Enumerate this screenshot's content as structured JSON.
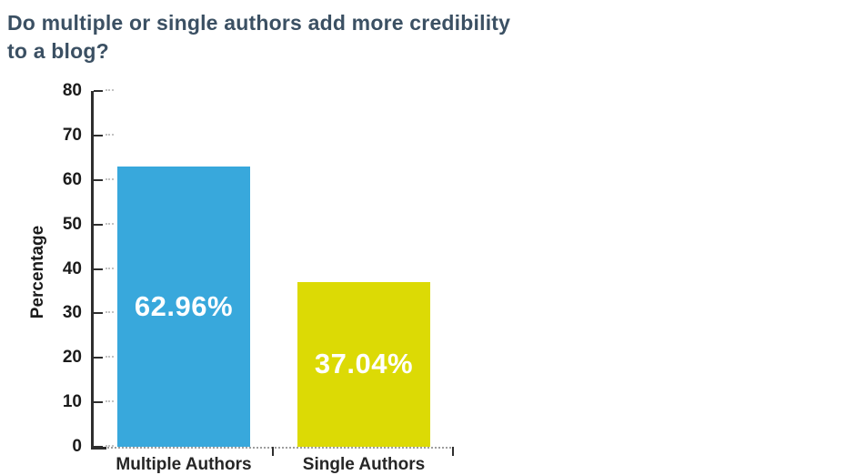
{
  "chart_data": {
    "type": "bar",
    "title": "Do multiple or single authors add more credibility\nto a blog?",
    "categories": [
      "Multiple Authors",
      "Single Authors"
    ],
    "values": [
      62.96,
      37.04
    ],
    "value_labels": [
      "62.96%",
      "37.04%"
    ],
    "bar_colors": [
      "#38a8dc",
      "#dcda05"
    ],
    "xlabel": "",
    "ylabel": "Percentage",
    "ylim": [
      0,
      80
    ],
    "yticks": [
      0,
      10,
      20,
      30,
      40,
      50,
      60,
      70,
      80
    ],
    "grid": false,
    "legend": "none"
  },
  "colors": {
    "title": "#3b5063",
    "axis": "#2e2e2e",
    "tick_label": "#1b1b1b",
    "category_label": "#262626",
    "value_label": "#ffffff",
    "baseline_dotted": "#9e9e9e",
    "background": "#ffffff"
  }
}
